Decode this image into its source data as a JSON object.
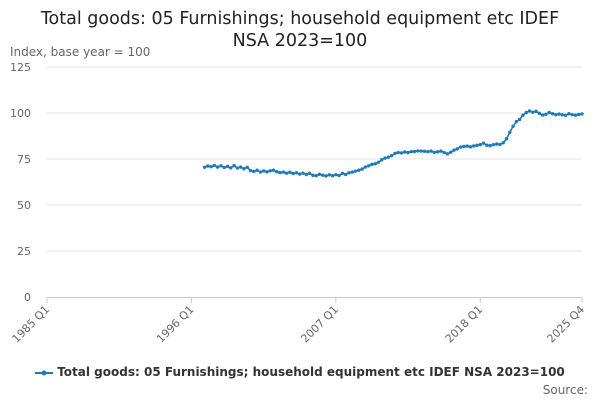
{
  "chart_data": {
    "type": "line",
    "title_lines": [
      "Total goods: 05 Furnishings; household equipment etc IDEF",
      "NSA 2023=100"
    ],
    "ylabel": "Index, base year = 100",
    "xlabel": "",
    "ylim": [
      0,
      125
    ],
    "yticks": [
      0,
      25,
      50,
      75,
      100,
      125
    ],
    "xlim": [
      "1985 Q1",
      "2025 Q4"
    ],
    "xtick_labels": [
      "1985 Q1",
      "1996 Q1",
      "2007 Q1",
      "2018 Q1",
      "2025 Q4"
    ],
    "grid": "horizontal",
    "legend_position": "bottom",
    "source_label": "Source:",
    "series": [
      {
        "name": "Total goods: 05 Furnishings; household equipment etc IDEF NSA 2023=100",
        "color": "#1f7ab8",
        "points": [
          [
            "1997 Q1",
            70.5
          ],
          [
            "1997 Q2",
            71.2
          ],
          [
            "1997 Q3",
            70.8
          ],
          [
            "1997 Q4",
            71.5
          ],
          [
            "1998 Q1",
            70.6
          ],
          [
            "1998 Q2",
            71.3
          ],
          [
            "1998 Q3",
            70.4
          ],
          [
            "1998 Q4",
            71.0
          ],
          [
            "1999 Q1",
            70.2
          ],
          [
            "1999 Q2",
            71.4
          ],
          [
            "1999 Q3",
            70.1
          ],
          [
            "1999 Q4",
            70.6
          ],
          [
            "2000 Q1",
            69.7
          ],
          [
            "2000 Q2",
            70.5
          ],
          [
            "2000 Q3",
            68.7
          ],
          [
            "2000 Q4",
            68.2
          ],
          [
            "2001 Q1",
            68.9
          ],
          [
            "2001 Q2",
            67.9
          ],
          [
            "2001 Q3",
            68.5
          ],
          [
            "2001 Q4",
            68.0
          ],
          [
            "2002 Q1",
            68.6
          ],
          [
            "2002 Q2",
            68.9
          ],
          [
            "2002 Q3",
            68.1
          ],
          [
            "2002 Q4",
            67.6
          ],
          [
            "2003 Q1",
            67.9
          ],
          [
            "2003 Q2",
            67.3
          ],
          [
            "2003 Q3",
            67.8
          ],
          [
            "2003 Q4",
            67.1
          ],
          [
            "2004 Q1",
            67.5
          ],
          [
            "2004 Q2",
            66.8
          ],
          [
            "2004 Q3",
            67.3
          ],
          [
            "2004 Q4",
            66.6
          ],
          [
            "2005 Q1",
            67.2
          ],
          [
            "2005 Q2",
            66.1
          ],
          [
            "2005 Q3",
            65.9
          ],
          [
            "2005 Q4",
            66.7
          ],
          [
            "2006 Q1",
            66.2
          ],
          [
            "2006 Q2",
            65.8
          ],
          [
            "2006 Q3",
            66.4
          ],
          [
            "2006 Q4",
            65.9
          ],
          [
            "2007 Q1",
            66.5
          ],
          [
            "2007 Q2",
            66.0
          ],
          [
            "2007 Q3",
            67.2
          ],
          [
            "2007 Q4",
            66.6
          ],
          [
            "2008 Q1",
            67.5
          ],
          [
            "2008 Q2",
            67.9
          ],
          [
            "2008 Q3",
            68.4
          ],
          [
            "2008 Q4",
            68.9
          ],
          [
            "2009 Q1",
            69.5
          ],
          [
            "2009 Q2",
            70.6
          ],
          [
            "2009 Q3",
            71.3
          ],
          [
            "2009 Q4",
            72.1
          ],
          [
            "2010 Q1",
            72.4
          ],
          [
            "2010 Q2",
            73.2
          ],
          [
            "2010 Q3",
            74.6
          ],
          [
            "2010 Q4",
            75.5
          ],
          [
            "2011 Q1",
            76.0
          ],
          [
            "2011 Q2",
            76.8
          ],
          [
            "2011 Q3",
            78.0
          ],
          [
            "2011 Q4",
            78.5
          ],
          [
            "2012 Q1",
            78.3
          ],
          [
            "2012 Q2",
            78.8
          ],
          [
            "2012 Q3",
            78.5
          ],
          [
            "2012 Q4",
            79.0
          ],
          [
            "2013 Q1",
            79.1
          ],
          [
            "2013 Q2",
            79.4
          ],
          [
            "2013 Q3",
            79.3
          ],
          [
            "2013 Q4",
            79.2
          ],
          [
            "2014 Q1",
            79.0
          ],
          [
            "2014 Q2",
            79.3
          ],
          [
            "2014 Q3",
            78.6
          ],
          [
            "2014 Q4",
            78.9
          ],
          [
            "2015 Q1",
            79.3
          ],
          [
            "2015 Q2",
            78.5
          ],
          [
            "2015 Q3",
            77.8
          ],
          [
            "2015 Q4",
            78.7
          ],
          [
            "2016 Q1",
            79.8
          ],
          [
            "2016 Q2",
            80.5
          ],
          [
            "2016 Q3",
            81.5
          ],
          [
            "2016 Q4",
            81.8
          ],
          [
            "2017 Q1",
            82.0
          ],
          [
            "2017 Q2",
            81.6
          ],
          [
            "2017 Q3",
            82.1
          ],
          [
            "2017 Q4",
            82.4
          ],
          [
            "2018 Q1",
            82.8
          ],
          [
            "2018 Q2",
            83.6
          ],
          [
            "2018 Q3",
            82.5
          ],
          [
            "2018 Q4",
            82.2
          ],
          [
            "2019 Q1",
            82.8
          ],
          [
            "2019 Q2",
            83.1
          ],
          [
            "2019 Q3",
            82.9
          ],
          [
            "2019 Q4",
            83.8
          ],
          [
            "2020 Q1",
            86.0
          ],
          [
            "2020 Q2",
            89.5
          ],
          [
            "2020 Q3",
            92.8
          ],
          [
            "2020 Q4",
            95.3
          ],
          [
            "2021 Q1",
            96.5
          ],
          [
            "2021 Q2",
            98.8
          ],
          [
            "2021 Q3",
            100.2
          ],
          [
            "2021 Q4",
            101.1
          ],
          [
            "2022 Q1",
            100.4
          ],
          [
            "2022 Q2",
            100.9
          ],
          [
            "2022 Q3",
            99.8
          ],
          [
            "2022 Q4",
            98.9
          ],
          [
            "2023 Q1",
            99.3
          ],
          [
            "2023 Q2",
            100.3
          ],
          [
            "2023 Q3",
            99.6
          ],
          [
            "2023 Q4",
            99.1
          ],
          [
            "2024 Q1",
            99.4
          ],
          [
            "2024 Q2",
            99.0
          ],
          [
            "2024 Q3",
            98.7
          ],
          [
            "2024 Q4",
            99.6
          ],
          [
            "2025 Q1",
            99.1
          ],
          [
            "2025 Q2",
            98.8
          ],
          [
            "2025 Q3",
            99.2
          ],
          [
            "2025 Q4",
            99.5
          ]
        ]
      }
    ]
  }
}
